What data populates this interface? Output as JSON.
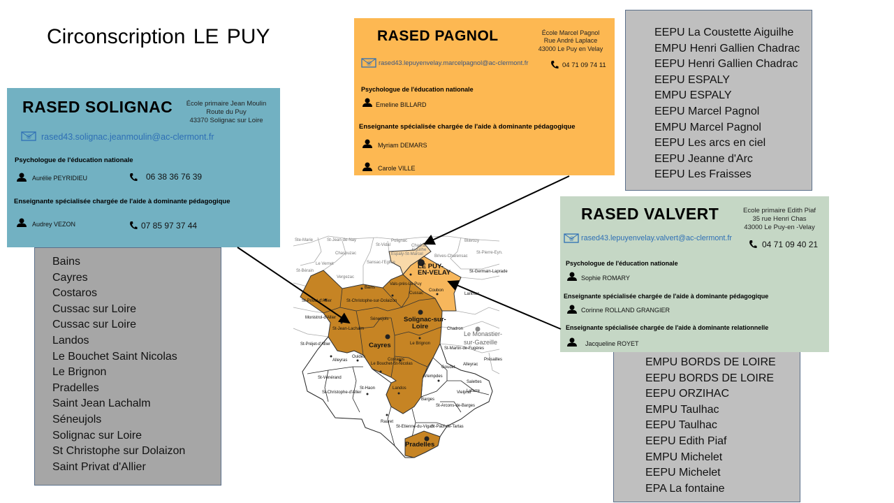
{
  "slide": {
    "title": "Circonscription LE PUY"
  },
  "solignac": {
    "title": "RASED SOLIGNAC",
    "address": [
      "École primaire Jean Moulin",
      "Route du Puy",
      "43370 Solignac sur Loire"
    ],
    "email": "rased43.solignac.jeanmoulin@ac-clermont.fr",
    "role1": "Psychologue de l'éducation nationale",
    "person1": "Aurélie PEYRIDIEU",
    "phone1": "06 38 36 76 39",
    "role2": "Enseignante spécialisée chargée de l'aide à dominante pédagogique",
    "person2": "Audrey VEZON",
    "phone2": "07 85 97 37 44",
    "color": "#72b1c2"
  },
  "pagnol": {
    "title": "RASED PAGNOL",
    "address": [
      "École Marcel Pagnol",
      "Rue André Laplace",
      "43000 Le Puy en Velay"
    ],
    "email": "rased43.lepuyenvelay.marcelpagnol@ac-clermont.fr",
    "phone": "04 71 09 74 11",
    "role1": "Psychologue de l'éducation nationale",
    "person1": "Emeline BILLARD",
    "role2": "Enseignante spécialisée chargée de l'aide à dominante pédagogique",
    "person2": "Myriam DEMARS",
    "person3": "Carole VILLE",
    "color": "#fdb852"
  },
  "valvert": {
    "title": "RASED VALVERT",
    "address": [
      "Ecole primaire Edith Piaf",
      "35 rue Henri Chas",
      "43000 Le Puy-en -Velay"
    ],
    "email": "rased43.lepuyenvelay.valvert@ac-clermont.fr",
    "phone": "04 71 09 40 21",
    "role1": "Psychologue de l'éducation nationale",
    "person1": "Sophie ROMARY",
    "role2": "Enseignante spécialisée chargée de l'aide à dominante pédagogique",
    "person2": "Corinne ROLLAND GRANGIER",
    "role3": "Enseignante spécialisée chargée de l'aide à dominante relationnelle",
    "person3": "Jacqueline ROYET",
    "color": "#c5d7c5"
  },
  "lists": {
    "solignac": [
      "Bains",
      "Cayres",
      "Costaros",
      "Cussac sur Loire",
      "Cussac sur Loire",
      "Landos",
      "Le Bouchet Saint Nicolas",
      "Le Brignon",
      "Pradelles",
      "Saint Jean Lachalm",
      "Séneujols",
      "Solignac sur Loire",
      "St Christophe sur Dolaizon",
      "Saint Privat d'Allier"
    ],
    "pagnol": [
      "EEPU La Coustette Aiguilhe",
      "EMPU Henri Gallien Chadrac",
      "EEPU Henri Gallien Chadrac",
      "EEPU ESPALY",
      "EMPU ESPALY",
      "EEPU Marcel Pagnol",
      "EMPU Marcel Pagnol",
      "EEPU Les arcs en ciel",
      "EEPU Jeanne d'Arc",
      "EEPU Les Fraisses"
    ],
    "valvert": [
      "EMPU BORDS DE LOIRE",
      "EEPU BORDS DE LOIRE",
      "EEPU ORZIHAC",
      "EMPU Taulhac",
      "EEPU Taulhac",
      "EEPU Edith Piaf",
      "EMPU Michelet",
      "EEPU Michelet",
      "EPA La fontaine"
    ]
  },
  "map": {
    "colors": {
      "solignac_zone": "#c68424",
      "pagnol_zone": "#f7b75c",
      "valvert_zone": "#f9d9a9"
    },
    "labels": [
      "Ste-Marie",
      "St-Jean-de-Nay",
      "Chaspuzac",
      "St-Vidal",
      "Polignac",
      "Chadrac",
      "Aiguilhe",
      "Espaly-St-Marcel",
      "LE PUY-",
      "EN-VELAY",
      "Brives-Charensac",
      "Blavozy",
      "St-Pierre-Eyn.",
      "Sansac-l'Eglise",
      "Le Vernet",
      "St-Bérain",
      "Vergezac",
      "Bains",
      "St-Privat-d'Allier",
      "St-Christophe-sur-Dolaizon",
      "Vals-près-Le Puy",
      "Cussac",
      "Coubon",
      "St-Germain-Laprade",
      "Lantriac",
      "Séneujols",
      "Solignac-sur-",
      "Loire",
      "St-Jean-Lachalm",
      "Monistrol-d'Allier",
      "Cayres",
      "Le Brignon",
      "Chadron",
      "Le Monastier-",
      "sur-Gazeille",
      "St-Préjet-d'Allier",
      "St-Martin-de-Fugères",
      "Alleyras",
      "Ouides",
      "Le Bouchet-St-Nicolas",
      "Costaros",
      "Alleyrac",
      "Présailles",
      "Goudet",
      "St-Vénérand",
      "St-Haon",
      "Arlempdes",
      "Salettes",
      "St-Christophe-d'Allier",
      "Landos",
      "Vielprat",
      "Lafarre",
      "Barges",
      "St-Arcons-de-Barges",
      "Rauret",
      "St-Etienne-du-Vigan",
      "St-Paul-de-Tartas",
      "Pradelles"
    ]
  }
}
